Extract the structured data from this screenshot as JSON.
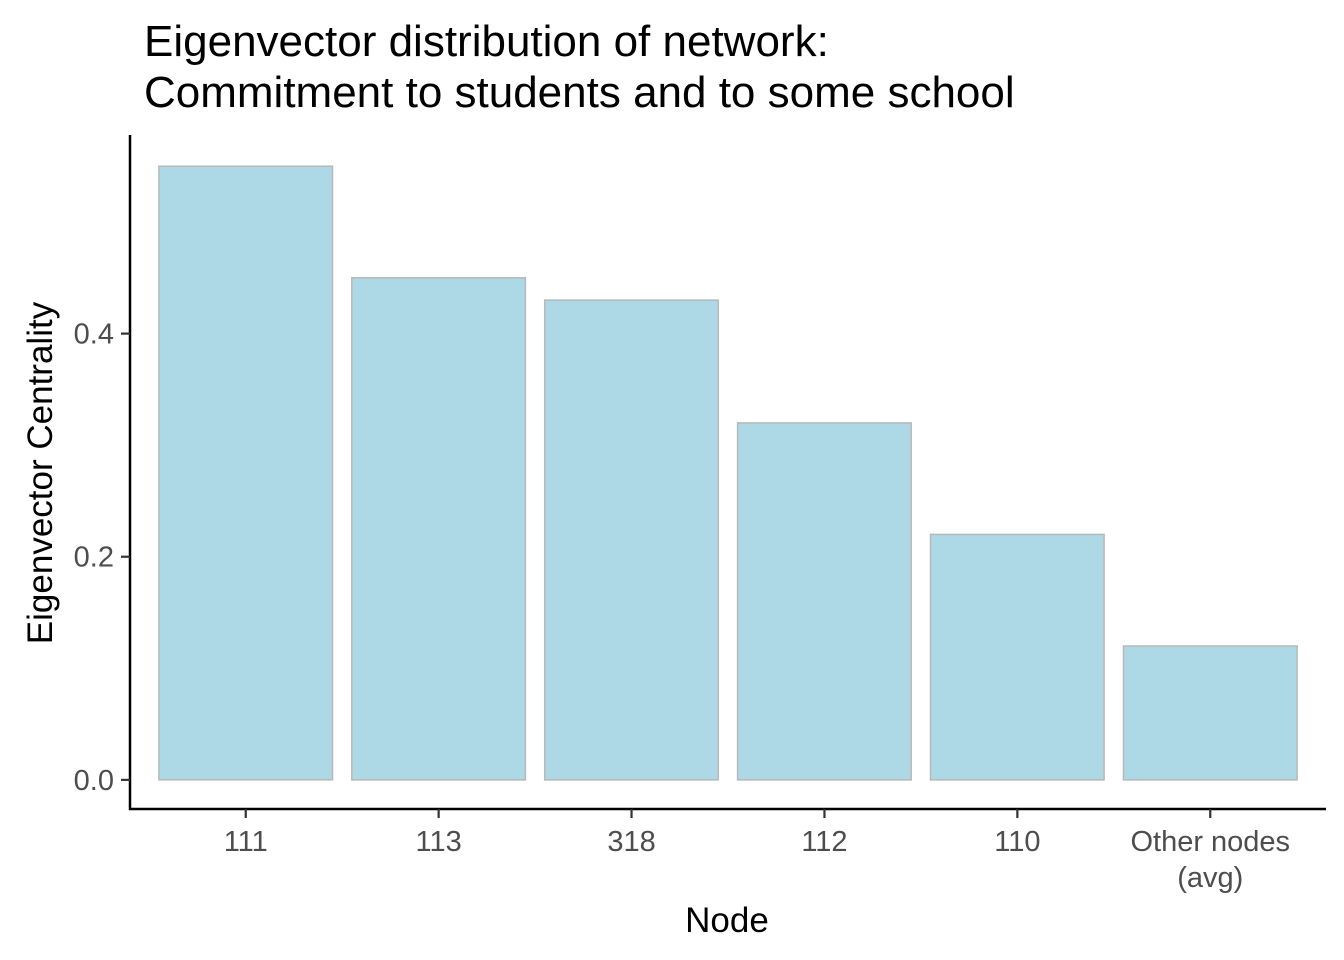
{
  "chart_data": {
    "type": "bar",
    "title": [
      "Eigenvector distribution of network:",
      "Commitment to students and to some school"
    ],
    "xlabel": "Node",
    "ylabel": "Eigenvector Centrality",
    "categories": [
      [
        "111"
      ],
      [
        "113"
      ],
      [
        "318"
      ],
      [
        "112"
      ],
      [
        "110"
      ],
      [
        "Other nodes",
        "(avg)"
      ]
    ],
    "values": [
      0.55,
      0.45,
      0.43,
      0.32,
      0.22,
      0.12
    ],
    "yticks": [
      "0.0",
      "0.2",
      "0.4"
    ],
    "ytick_values": [
      0,
      0.2,
      0.4
    ],
    "ylim": [
      -0.027,
      0.578
    ],
    "bar_color": "#add8e6",
    "bar_outline_color": "#b8b8b8",
    "grid": false,
    "legend": "none"
  }
}
